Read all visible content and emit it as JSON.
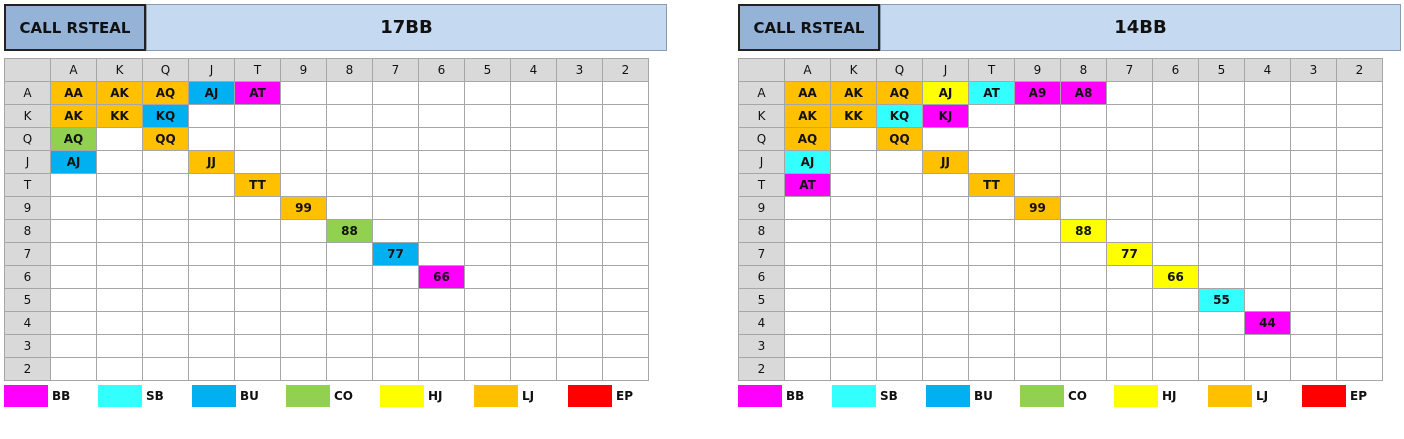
{
  "ranks": [
    "A",
    "K",
    "Q",
    "J",
    "T",
    "9",
    "8",
    "7",
    "6",
    "5",
    "4",
    "3",
    "2"
  ],
  "colors": {
    "BB": "#ff00ff",
    "SB": "#33ffff",
    "BU": "#00b0f0",
    "CO": "#92d050",
    "HJ": "#ffff00",
    "LJ": "#ffc000",
    "EP": "#ff0000"
  },
  "legend": [
    "BB",
    "SB",
    "BU",
    "CO",
    "HJ",
    "LJ",
    "EP"
  ],
  "charts": [
    {
      "label": "CALL RSTEAL",
      "stack": "17BB",
      "cells": [
        {
          "r": 0,
          "c": 0,
          "text": "AA",
          "pos": "LJ"
        },
        {
          "r": 0,
          "c": 1,
          "text": "AK",
          "pos": "LJ"
        },
        {
          "r": 0,
          "c": 2,
          "text": "AQ",
          "pos": "LJ"
        },
        {
          "r": 0,
          "c": 3,
          "text": "AJ",
          "pos": "BU"
        },
        {
          "r": 0,
          "c": 4,
          "text": "AT",
          "pos": "BB"
        },
        {
          "r": 1,
          "c": 0,
          "text": "AK",
          "pos": "LJ"
        },
        {
          "r": 1,
          "c": 1,
          "text": "KK",
          "pos": "LJ"
        },
        {
          "r": 1,
          "c": 2,
          "text": "KQ",
          "pos": "BU"
        },
        {
          "r": 2,
          "c": 0,
          "text": "AQ",
          "pos": "CO"
        },
        {
          "r": 2,
          "c": 2,
          "text": "QQ",
          "pos": "LJ"
        },
        {
          "r": 3,
          "c": 0,
          "text": "AJ",
          "pos": "BU"
        },
        {
          "r": 3,
          "c": 3,
          "text": "JJ",
          "pos": "LJ"
        },
        {
          "r": 4,
          "c": 4,
          "text": "TT",
          "pos": "LJ"
        },
        {
          "r": 5,
          "c": 5,
          "text": "99",
          "pos": "LJ"
        },
        {
          "r": 6,
          "c": 6,
          "text": "88",
          "pos": "CO"
        },
        {
          "r": 7,
          "c": 7,
          "text": "77",
          "pos": "BU"
        },
        {
          "r": 8,
          "c": 8,
          "text": "66",
          "pos": "BB"
        }
      ]
    },
    {
      "label": "CALL RSTEAL",
      "stack": "14BB",
      "cells": [
        {
          "r": 0,
          "c": 0,
          "text": "AA",
          "pos": "LJ"
        },
        {
          "r": 0,
          "c": 1,
          "text": "AK",
          "pos": "LJ"
        },
        {
          "r": 0,
          "c": 2,
          "text": "AQ",
          "pos": "LJ"
        },
        {
          "r": 0,
          "c": 3,
          "text": "AJ",
          "pos": "HJ"
        },
        {
          "r": 0,
          "c": 4,
          "text": "AT",
          "pos": "SB"
        },
        {
          "r": 0,
          "c": 5,
          "text": "A9",
          "pos": "BB"
        },
        {
          "r": 0,
          "c": 6,
          "text": "A8",
          "pos": "BB"
        },
        {
          "r": 1,
          "c": 0,
          "text": "AK",
          "pos": "LJ"
        },
        {
          "r": 1,
          "c": 1,
          "text": "KK",
          "pos": "LJ"
        },
        {
          "r": 1,
          "c": 2,
          "text": "KQ",
          "pos": "SB"
        },
        {
          "r": 1,
          "c": 3,
          "text": "KJ",
          "pos": "BB"
        },
        {
          "r": 2,
          "c": 0,
          "text": "AQ",
          "pos": "LJ"
        },
        {
          "r": 2,
          "c": 2,
          "text": "QQ",
          "pos": "LJ"
        },
        {
          "r": 3,
          "c": 0,
          "text": "AJ",
          "pos": "SB"
        },
        {
          "r": 3,
          "c": 3,
          "text": "JJ",
          "pos": "LJ"
        },
        {
          "r": 4,
          "c": 0,
          "text": "AT",
          "pos": "BB"
        },
        {
          "r": 4,
          "c": 4,
          "text": "TT",
          "pos": "LJ"
        },
        {
          "r": 5,
          "c": 5,
          "text": "99",
          "pos": "LJ"
        },
        {
          "r": 6,
          "c": 6,
          "text": "88",
          "pos": "HJ"
        },
        {
          "r": 7,
          "c": 7,
          "text": "77",
          "pos": "HJ"
        },
        {
          "r": 8,
          "c": 8,
          "text": "66",
          "pos": "HJ"
        },
        {
          "r": 9,
          "c": 9,
          "text": "55",
          "pos": "SB"
        },
        {
          "r": 10,
          "c": 10,
          "text": "44",
          "pos": "BB"
        }
      ]
    }
  ]
}
